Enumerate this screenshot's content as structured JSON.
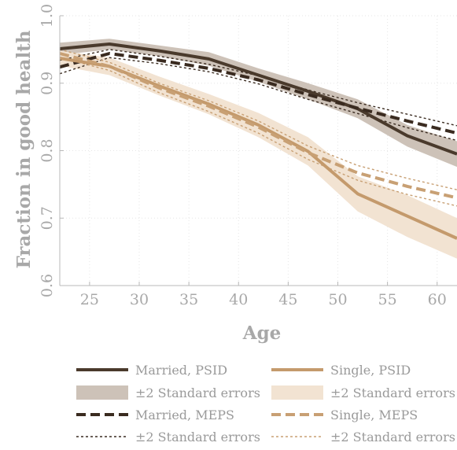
{
  "chart_data": {
    "type": "line",
    "xlabel": "Age",
    "ylabel": "Fraction in good health",
    "xlim": [
      22,
      62
    ],
    "ylim": [
      0.6,
      1.0
    ],
    "xticks": [
      25,
      30,
      35,
      40,
      45,
      50,
      55,
      60
    ],
    "yticks": [
      0.6,
      0.7,
      0.8,
      0.9,
      1.0
    ],
    "ytick_labels": [
      "0.6",
      "0.7",
      "0.8",
      "0.9",
      "1.0"
    ],
    "grid": true,
    "legend_position": "bottom",
    "series": [
      {
        "name": "Married, PSID",
        "kind": "line",
        "style": "solid",
        "color": "#4a3a2c",
        "x": [
          22,
          27,
          32,
          37,
          42,
          47,
          52,
          57,
          62
        ],
        "y": [
          0.951,
          0.958,
          0.948,
          0.936,
          0.912,
          0.888,
          0.862,
          0.822,
          0.795
        ]
      },
      {
        "name": "±2 Standard errors",
        "kind": "band",
        "color": "#cdc2b8",
        "x": [
          22,
          27,
          32,
          37,
          42,
          47,
          52,
          57,
          62
        ],
        "lower": [
          0.942,
          0.95,
          0.94,
          0.926,
          0.902,
          0.876,
          0.848,
          0.806,
          0.776
        ],
        "upper": [
          0.96,
          0.966,
          0.956,
          0.946,
          0.922,
          0.9,
          0.876,
          0.838,
          0.814
        ]
      },
      {
        "name": "Married, MEPS",
        "kind": "line",
        "style": "dashed",
        "color": "#3a2b20",
        "x": [
          22,
          27,
          32,
          37,
          42,
          47,
          52,
          57,
          62
        ],
        "y": [
          0.924,
          0.944,
          0.934,
          0.922,
          0.905,
          0.883,
          0.863,
          0.844,
          0.826
        ]
      },
      {
        "name": "±2 Standard errors",
        "kind": "bound-lines",
        "style": "dotted",
        "color": "#3a2b20",
        "x": [
          22,
          27,
          32,
          37,
          42,
          47,
          52,
          57,
          62
        ],
        "lower": [
          0.914,
          0.938,
          0.929,
          0.917,
          0.899,
          0.876,
          0.855,
          0.834,
          0.815
        ],
        "upper": [
          0.934,
          0.95,
          0.94,
          0.928,
          0.911,
          0.89,
          0.871,
          0.854,
          0.837
        ]
      },
      {
        "name": "Single, PSID",
        "kind": "line",
        "style": "solid",
        "color": "#c49a6c",
        "x": [
          22,
          27,
          32,
          37,
          42,
          47,
          52,
          57,
          62
        ],
        "y": [
          0.937,
          0.925,
          0.896,
          0.869,
          0.838,
          0.799,
          0.736,
          0.703,
          0.67
        ]
      },
      {
        "name": "±2 Standard errors",
        "kind": "band",
        "color": "#f2e3d2",
        "x": [
          22,
          27,
          32,
          37,
          42,
          47,
          52,
          57,
          62
        ],
        "lower": [
          0.926,
          0.912,
          0.882,
          0.854,
          0.82,
          0.778,
          0.71,
          0.672,
          0.64
        ],
        "upper": [
          0.948,
          0.938,
          0.91,
          0.884,
          0.856,
          0.82,
          0.762,
          0.734,
          0.7
        ]
      },
      {
        "name": "Single, MEPS",
        "kind": "line",
        "style": "dashed",
        "color": "#c8a074",
        "x": [
          22,
          27,
          32,
          37,
          42,
          47,
          52,
          57,
          62
        ],
        "y": [
          0.944,
          0.925,
          0.893,
          0.866,
          0.835,
          0.797,
          0.767,
          0.747,
          0.73
        ]
      },
      {
        "name": "±2 Standard errors",
        "kind": "bound-lines",
        "style": "dotted",
        "color": "#c8a074",
        "x": [
          22,
          27,
          32,
          37,
          42,
          47,
          52,
          57,
          62
        ],
        "lower": [
          0.938,
          0.919,
          0.886,
          0.858,
          0.826,
          0.787,
          0.756,
          0.735,
          0.718
        ],
        "upper": [
          0.95,
          0.931,
          0.9,
          0.874,
          0.844,
          0.807,
          0.778,
          0.759,
          0.742
        ]
      }
    ]
  }
}
